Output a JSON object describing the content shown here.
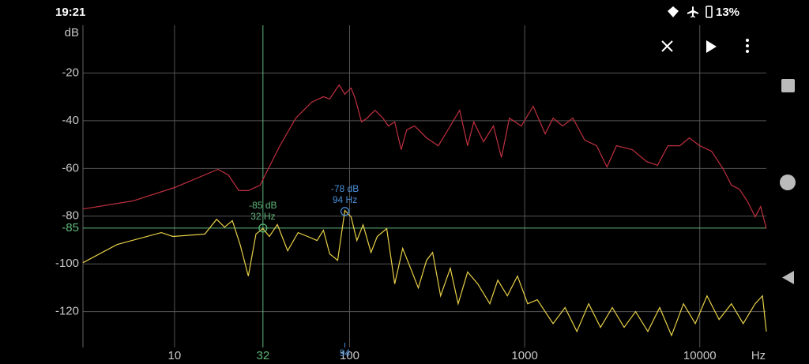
{
  "status_bar": {
    "time": "19:21",
    "battery": "13%"
  },
  "chart_data": {
    "type": "line",
    "y_unit": "dB",
    "x_unit": "Hz",
    "xscale": "log",
    "xlim": [
      3,
      24000
    ],
    "ylim": [
      -135,
      0
    ],
    "xticks": [
      10,
      100,
      1000,
      10000
    ],
    "yticks": [
      -20,
      -40,
      -60,
      -80,
      -100,
      -120
    ],
    "grid": true,
    "series": [
      {
        "color": "#c0303f",
        "x": [
          3,
          5.8,
          10,
          17.7,
          20.3,
          23.3,
          26.4,
          30.8,
          34.2,
          40,
          49.3,
          60.6,
          70.9,
          77,
          82.9,
          87.3,
          93.9,
          102,
          107.6,
          117,
          125.8,
          139.6,
          155,
          166.6,
          181,
          197,
          212,
          235,
          275,
          321,
          376,
          425,
          472,
          512,
          582,
          663,
          737,
          818,
          956,
          1118,
          1308,
          1454,
          1647,
          1885,
          2202,
          2575,
          2952,
          3344,
          4118,
          4969,
          5741,
          6576,
          7697,
          8722,
          10000,
          11680,
          13650,
          15160,
          16820,
          18660,
          20720,
          22270,
          24000
        ],
        "values": [
          -77,
          -73.6,
          -68,
          -60.4,
          -62.7,
          -69.3,
          -69.3,
          -67,
          -60.4,
          -50.5,
          -38.9,
          -32.3,
          -29.9,
          -30.9,
          -27.3,
          -25,
          -28.9,
          -26.3,
          -30.6,
          -40.5,
          -38.9,
          -35.6,
          -38.9,
          -42.2,
          -40.5,
          -52.1,
          -43.8,
          -42.2,
          -47.2,
          -50.5,
          -42.2,
          -35.6,
          -50.5,
          -40.5,
          -48.8,
          -42.2,
          -55.4,
          -38.9,
          -42.2,
          -33.9,
          -45.5,
          -38.9,
          -42.2,
          -38.9,
          -48.1,
          -50.5,
          -59.4,
          -50.5,
          -52.1,
          -57.1,
          -58.7,
          -50.5,
          -50.5,
          -47.2,
          -50.5,
          -52.8,
          -60.4,
          -67,
          -68.7,
          -73.6,
          -80.3,
          -76,
          -85.2
        ]
      },
      {
        "color": "#e8d048",
        "x": [
          3,
          4.7,
          8.4,
          9.8,
          14.9,
          17.4,
          19.3,
          21.4,
          23.7,
          26.4,
          29.2,
          32,
          34.8,
          38.7,
          44.3,
          50.8,
          57.6,
          65.2,
          70.9,
          77,
          85.5,
          94,
          102,
          110,
          119.4,
          132.5,
          143.9,
          163,
          181,
          201,
          223,
          247,
          275,
          298,
          331,
          376,
          417,
          472,
          540,
          632,
          702,
          796,
          910,
          1040,
          1181,
          1308,
          1454,
          1700,
          1986,
          2320,
          2710,
          3164,
          3700,
          4300,
          5050,
          5900,
          6900,
          8070,
          9430,
          11000,
          12900,
          15160,
          17700,
          20700,
          22800,
          24000
        ],
        "values": [
          -99.5,
          -91.9,
          -86.9,
          -88.5,
          -87.5,
          -81.3,
          -84.6,
          -81.9,
          -91.9,
          -105.1,
          -87.5,
          -85.2,
          -88.5,
          -83.5,
          -94.5,
          -86.9,
          -88.5,
          -90.2,
          -85.9,
          -95.8,
          -98.5,
          -77.6,
          -80.3,
          -90.2,
          -83.6,
          -95.2,
          -88.5,
          -85.2,
          -108.4,
          -93.5,
          -101.8,
          -110.1,
          -98.5,
          -95.2,
          -113.4,
          -101.8,
          -116.7,
          -103.4,
          -108.4,
          -116.7,
          -106.8,
          -113.4,
          -105.1,
          -116.7,
          -115,
          -120,
          -125,
          -118.3,
          -128.3,
          -116.7,
          -126.6,
          -118.3,
          -126.6,
          -120,
          -128.3,
          -118.3,
          -130,
          -116.7,
          -125,
          -113.4,
          -123.3,
          -116.7,
          -125,
          -116.7,
          -113.4,
          -128.3
        ]
      }
    ],
    "cursor": {
      "color": "#5fb87a",
      "x": {
        "value": 32,
        "label": "32"
      },
      "y": {
        "value": -85,
        "label": "-85"
      }
    },
    "peak_tick": {
      "color": "#4a8fd8",
      "value": 94,
      "label": "94"
    },
    "markers": [
      {
        "x": 32,
        "y": -85,
        "db_label": "-85 dB",
        "hz_label": "32 Hz",
        "color": "#5fb87a"
      },
      {
        "x": 94,
        "y": -78,
        "db_label": "-78 dB",
        "hz_label": "94 Hz",
        "color": "#4a8fd8"
      }
    ]
  }
}
